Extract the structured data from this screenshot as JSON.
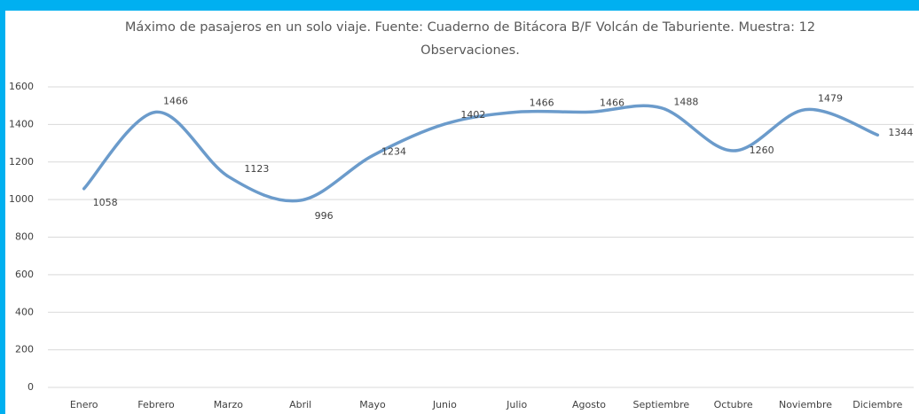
{
  "chart_data": {
    "type": "line",
    "title": "Máximo de pasajeros en un solo viaje. Fuente: Cuaderno de Bitácora B/F Volcán de Taburiente. Muestra: 12 Observaciones.",
    "categories": [
      "Enero",
      "Febrero",
      "Marzo",
      "Abril",
      "Mayo",
      "Junio",
      "Julio",
      "Agosto",
      "Septiembre",
      "Octubre",
      "Noviembre",
      "Diciembre"
    ],
    "values": [
      1058,
      1466,
      1123,
      996,
      1234,
      1402,
      1466,
      1466,
      1488,
      1260,
      1479,
      1344
    ],
    "color": "#6b9bcb",
    "ylim": [
      0,
      1600
    ],
    "yticks": [
      0,
      200,
      400,
      600,
      800,
      1000,
      1200,
      1400,
      1600
    ],
    "grid": true
  }
}
